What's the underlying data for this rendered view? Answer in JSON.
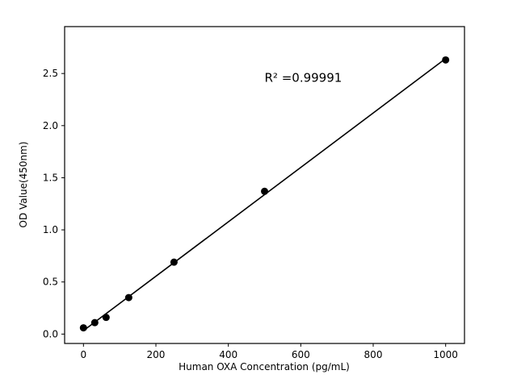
{
  "chart_data": {
    "type": "scatter",
    "title": "",
    "xlabel": "Human OXA Concentration (pg/mL)",
    "ylabel": "OD Value(450nm)",
    "x": [
      0,
      31.25,
      62.5,
      125,
      250,
      500,
      1000
    ],
    "y": [
      0.06,
      0.11,
      0.16,
      0.35,
      0.69,
      1.37,
      2.63
    ],
    "line": "linear-fit",
    "annotation": "R² =0.99991",
    "annotation_xy": [
      500,
      2.42
    ],
    "xlim": [
      -52,
      1052
    ],
    "ylim": [
      -0.09,
      2.95
    ],
    "x_ticks": [
      0,
      200,
      400,
      600,
      800,
      1000
    ],
    "y_ticks": [
      0.0,
      0.5,
      1.0,
      1.5,
      2.0,
      2.5
    ],
    "grid": false,
    "legend": "none",
    "marker_color": "#000000",
    "line_color": "#000000",
    "background_color": "#ffffff"
  }
}
